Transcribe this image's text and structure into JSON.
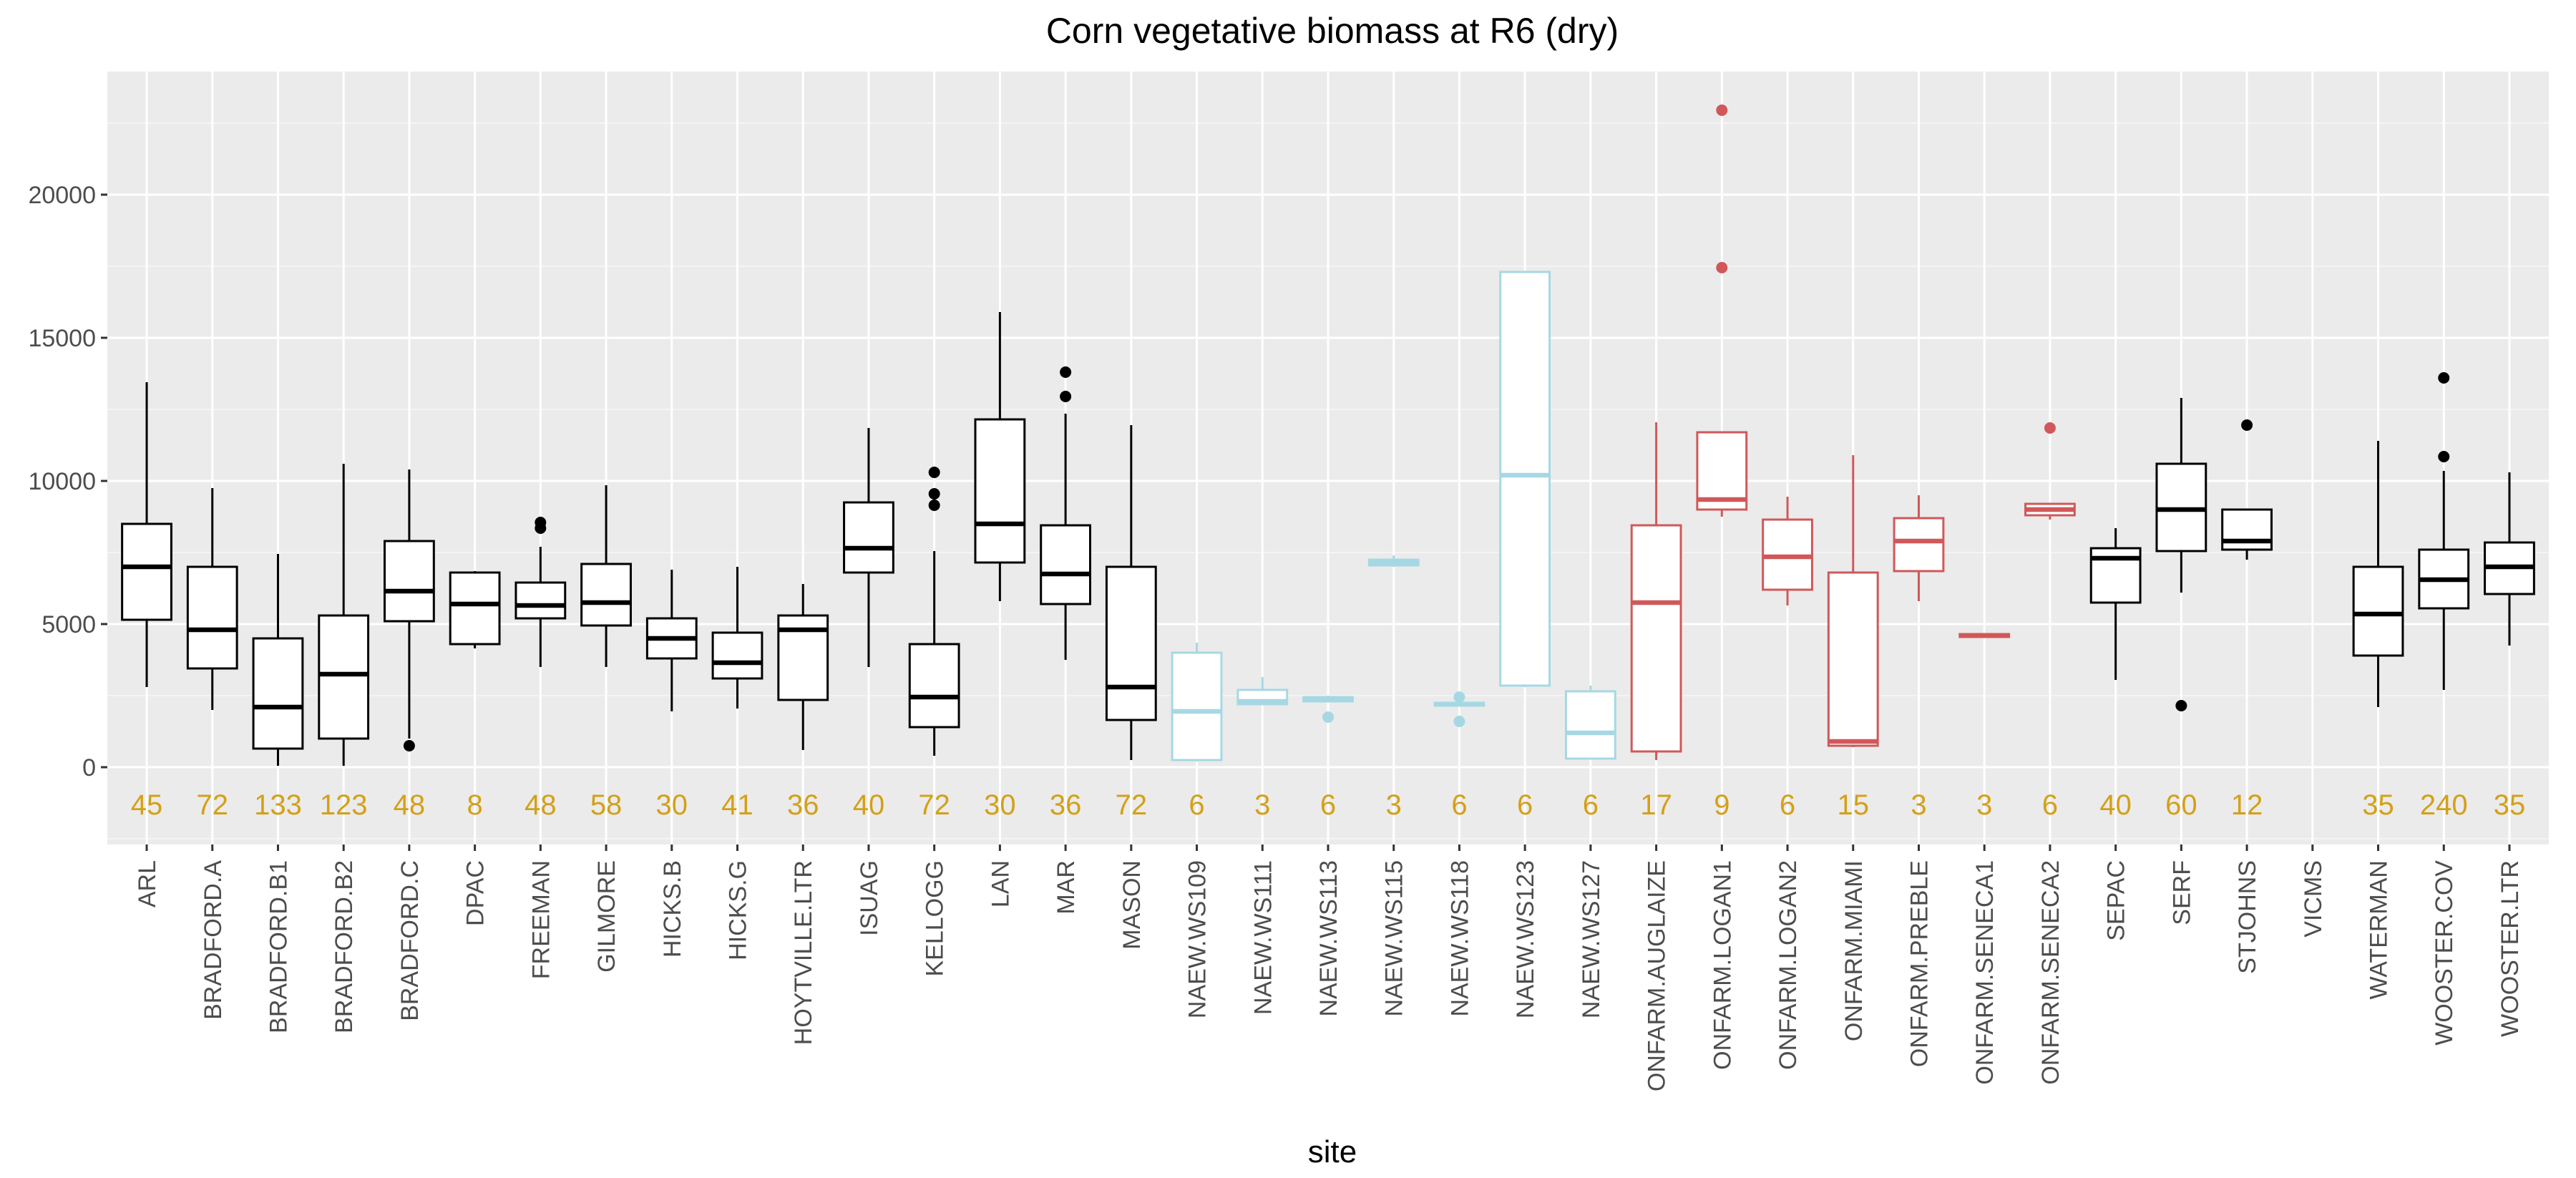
{
  "chart_data": {
    "type": "boxplot",
    "title": "Corn vegetative biomass at R6 (dry)",
    "xlabel": "site",
    "ylabel": "",
    "ylim": [
      -2700,
      24300
    ],
    "yticks": [
      0,
      5000,
      10000,
      15000,
      20000
    ],
    "grid": true,
    "count_color": "#d4a017",
    "colors": {
      "black": "#000000",
      "blue": "#a6d8e4",
      "red": "#d0585a",
      "panel": "#ebebeb",
      "grid": "#ffffff"
    },
    "sites": [
      {
        "name": "ARL",
        "n": "45",
        "color": "black",
        "lw": 2800,
        "q1": 5150,
        "med": 7000,
        "q3": 8500,
        "uw": 13450,
        "outliers": []
      },
      {
        "name": "BRADFORD.A",
        "n": "72",
        "color": "black",
        "lw": 2000,
        "q1": 3450,
        "med": 4800,
        "q3": 7000,
        "uw": 9750,
        "outliers": []
      },
      {
        "name": "BRADFORD.B1",
        "n": "133",
        "color": "black",
        "lw": 50,
        "q1": 650,
        "med": 2100,
        "q3": 4500,
        "uw": 7450,
        "outliers": []
      },
      {
        "name": "BRADFORD.B2",
        "n": "123",
        "color": "black",
        "lw": 50,
        "q1": 1000,
        "med": 3250,
        "q3": 5300,
        "uw": 10600,
        "outliers": []
      },
      {
        "name": "BRADFORD.C",
        "n": "48",
        "color": "black",
        "lw": 1000,
        "q1": 5100,
        "med": 6150,
        "q3": 7900,
        "uw": 10400,
        "outliers": [
          750
        ]
      },
      {
        "name": "DPAC",
        "n": "8",
        "color": "black",
        "lw": 4150,
        "q1": 4300,
        "med": 5700,
        "q3": 6800,
        "uw": 6850,
        "outliers": []
      },
      {
        "name": "FREEMAN",
        "n": "48",
        "color": "black",
        "lw": 3500,
        "q1": 5200,
        "med": 5650,
        "q3": 6450,
        "uw": 7700,
        "outliers": [
          8350,
          8550
        ]
      },
      {
        "name": "GILMORE",
        "n": "58",
        "color": "black",
        "lw": 3500,
        "q1": 4950,
        "med": 5750,
        "q3": 7100,
        "uw": 9850,
        "outliers": []
      },
      {
        "name": "HICKS.B",
        "n": "30",
        "color": "black",
        "lw": 1950,
        "q1": 3800,
        "med": 4500,
        "q3": 5200,
        "uw": 6900,
        "outliers": []
      },
      {
        "name": "HICKS.G",
        "n": "41",
        "color": "black",
        "lw": 2050,
        "q1": 3100,
        "med": 3650,
        "q3": 4700,
        "uw": 7000,
        "outliers": []
      },
      {
        "name": "HOYTVILLE.LTR",
        "n": "36",
        "color": "black",
        "lw": 600,
        "q1": 2350,
        "med": 4800,
        "q3": 5300,
        "uw": 6400,
        "outliers": []
      },
      {
        "name": "ISUAG",
        "n": "40",
        "color": "black",
        "lw": 3500,
        "q1": 6800,
        "med": 7650,
        "q3": 9250,
        "uw": 11850,
        "outliers": []
      },
      {
        "name": "KELLOGG",
        "n": "72",
        "color": "black",
        "lw": 400,
        "q1": 1400,
        "med": 2450,
        "q3": 4300,
        "uw": 7550,
        "outliers": [
          9150,
          9550,
          10300
        ]
      },
      {
        "name": "LAN",
        "n": "30",
        "color": "black",
        "lw": 5800,
        "q1": 7150,
        "med": 8500,
        "q3": 12150,
        "uw": 15900,
        "outliers": []
      },
      {
        "name": "MAR",
        "n": "36",
        "color": "black",
        "lw": 3750,
        "q1": 5700,
        "med": 6750,
        "q3": 8450,
        "uw": 12350,
        "outliers": [
          12950,
          13800
        ]
      },
      {
        "name": "MASON",
        "n": "72",
        "color": "black",
        "lw": 250,
        "q1": 1650,
        "med": 2800,
        "q3": 7000,
        "uw": 11950,
        "outliers": []
      },
      {
        "name": "NAEW.WS109",
        "n": "6",
        "color": "blue",
        "lw": 200,
        "q1": 250,
        "med": 1950,
        "q3": 4000,
        "uw": 4350,
        "outliers": []
      },
      {
        "name": "NAEW.WS111",
        "n": "3",
        "color": "blue",
        "lw": 2200,
        "q1": 2200,
        "med": 2300,
        "q3": 2700,
        "uw": 3150,
        "outliers": []
      },
      {
        "name": "NAEW.WS113",
        "n": "6",
        "color": "blue",
        "lw": 2300,
        "q1": 2300,
        "med": 2400,
        "q3": 2450,
        "uw": 2500,
        "outliers": [
          1750
        ]
      },
      {
        "name": "NAEW.WS115",
        "n": "3",
        "color": "blue",
        "lw": 7000,
        "q1": 7050,
        "med": 7150,
        "q3": 7250,
        "uw": 7400,
        "outliers": []
      },
      {
        "name": "NAEW.WS118",
        "n": "6",
        "color": "blue",
        "lw": 2150,
        "q1": 2150,
        "med": 2200,
        "q3": 2250,
        "uw": 2300,
        "outliers": [
          1600,
          2450
        ]
      },
      {
        "name": "NAEW.WS123",
        "n": "6",
        "color": "blue",
        "lw": 2800,
        "q1": 2850,
        "med": 10200,
        "q3": 17300,
        "uw": 17300,
        "outliers": []
      },
      {
        "name": "NAEW.WS127",
        "n": "6",
        "color": "blue",
        "lw": 350,
        "q1": 300,
        "med": 1200,
        "q3": 2650,
        "uw": 2850,
        "outliers": []
      },
      {
        "name": "ONFARM.AUGLAIZE",
        "n": "17",
        "color": "red",
        "lw": 250,
        "q1": 550,
        "med": 5750,
        "q3": 8450,
        "uw": 12050,
        "outliers": []
      },
      {
        "name": "ONFARM.LOGAN1",
        "n": "9",
        "color": "red",
        "lw": 8750,
        "q1": 9000,
        "med": 9350,
        "q3": 11700,
        "uw": 11700,
        "outliers": [
          17450,
          22950
        ]
      },
      {
        "name": "ONFARM.LOGAN2",
        "n": "6",
        "color": "red",
        "lw": 5650,
        "q1": 6200,
        "med": 7350,
        "q3": 8650,
        "uw": 9450,
        "outliers": []
      },
      {
        "name": "ONFARM.MIAMI",
        "n": "15",
        "color": "red",
        "lw": 700,
        "q1": 750,
        "med": 900,
        "q3": 6800,
        "uw": 10900,
        "outliers": []
      },
      {
        "name": "ONFARM.PREBLE",
        "n": "3",
        "color": "red",
        "lw": 5800,
        "q1": 6850,
        "med": 7900,
        "q3": 8700,
        "uw": 9500,
        "outliers": []
      },
      {
        "name": "ONFARM.SENECA1",
        "n": "3",
        "color": "red",
        "lw": 4550,
        "q1": 4550,
        "med": 4600,
        "q3": 4650,
        "uw": 4650,
        "outliers": []
      },
      {
        "name": "ONFARM.SENECA2",
        "n": "6",
        "color": "red",
        "lw": 8650,
        "q1": 8800,
        "med": 9000,
        "q3": 9200,
        "uw": 9200,
        "outliers": [
          11850
        ]
      },
      {
        "name": "SEPAC",
        "n": "40",
        "color": "black",
        "lw": 3050,
        "q1": 5750,
        "med": 7300,
        "q3": 7650,
        "uw": 8350,
        "outliers": []
      },
      {
        "name": "SERF",
        "n": "60",
        "color": "black",
        "lw": 6100,
        "q1": 7550,
        "med": 9000,
        "q3": 10600,
        "uw": 12900,
        "outliers": [
          2150
        ]
      },
      {
        "name": "STJOHNS",
        "n": "12",
        "color": "black",
        "lw": 7250,
        "q1": 7600,
        "med": 7900,
        "q3": 9000,
        "uw": 9000,
        "outliers": [
          11950
        ]
      },
      {
        "name": "VICMS",
        "n": "",
        "color": "none",
        "outliers": []
      },
      {
        "name": "WATERMAN",
        "n": "35",
        "color": "black",
        "lw": 2100,
        "q1": 3900,
        "med": 5350,
        "q3": 7000,
        "uw": 11400,
        "outliers": []
      },
      {
        "name": "WOOSTER.COV",
        "n": "240",
        "color": "black",
        "lw": 2700,
        "q1": 5550,
        "med": 6550,
        "q3": 7600,
        "uw": 10350,
        "outliers": [
          10850,
          13600
        ]
      },
      {
        "name": "WOOSTER.LTR",
        "n": "35",
        "color": "black",
        "lw": 4250,
        "q1": 6050,
        "med": 7000,
        "q3": 7850,
        "uw": 10300,
        "outliers": []
      }
    ]
  }
}
